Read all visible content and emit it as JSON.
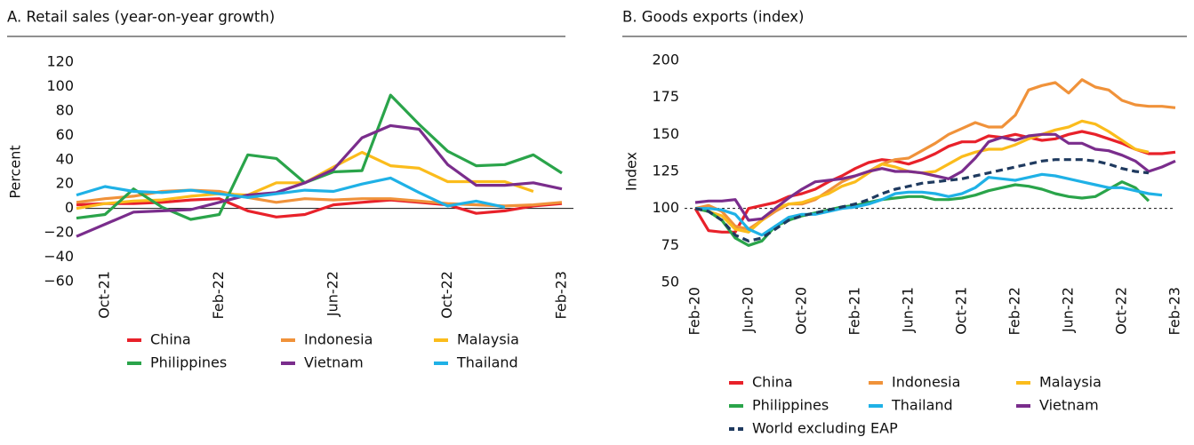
{
  "chart_data": [
    {
      "type": "line",
      "title": "A. Retail sales (year-on-year growth)",
      "y_label": "Percent",
      "categories": [
        null,
        "Oct-21",
        null,
        null,
        null,
        "Feb-22",
        null,
        null,
        null,
        "Jun-22",
        null,
        null,
        null,
        "Oct-22",
        null,
        null,
        null,
        "Feb-23"
      ],
      "ylim": [
        -60,
        120
      ],
      "yticks": [
        {
          "value": -60,
          "label": "−60"
        },
        {
          "value": -40,
          "label": "−40"
        },
        {
          "value": -20,
          "label": "−20"
        },
        0,
        20,
        40,
        60,
        80,
        100,
        120
      ],
      "hline": 0,
      "series": [
        {
          "name": "China",
          "color": "#e8212a",
          "values": [
            3,
            4,
            4,
            5,
            7,
            8,
            -2,
            -7,
            -5,
            3,
            5,
            7,
            5,
            3,
            -4,
            -2,
            2,
            4
          ]
        },
        {
          "name": "Indonesia",
          "color": "#f0923a",
          "values": [
            5,
            8,
            10,
            14,
            15,
            14,
            9,
            5,
            8,
            7,
            8,
            8,
            6,
            4,
            3,
            2,
            3,
            5
          ]
        },
        {
          "name": "Malaysia",
          "color": "#fbbc1c",
          "values": [
            0,
            4,
            6,
            7,
            10,
            12,
            11,
            21,
            21,
            34,
            46,
            35,
            33,
            22,
            22,
            22,
            14,
            null
          ]
        },
        {
          "name": "Philippines",
          "color": "#2aa44a",
          "values": [
            -8,
            -5,
            16,
            1,
            -9,
            -5,
            44,
            41,
            21,
            30,
            31,
            93,
            69,
            47,
            35,
            36,
            44,
            29
          ]
        },
        {
          "name": "Vietnam",
          "color": "#7a2d8c",
          "values": [
            -23,
            -13,
            -3,
            -2,
            -1,
            5,
            11,
            13,
            21,
            32,
            58,
            68,
            65,
            36,
            19,
            19,
            21,
            16
          ]
        },
        {
          "name": "Thailand",
          "color": "#1fb1e6",
          "values": [
            11,
            18,
            14,
            13,
            15,
            12,
            9,
            12,
            15,
            14,
            20,
            25,
            13,
            2,
            6,
            1,
            null,
            null
          ]
        }
      ]
    },
    {
      "type": "line",
      "title": "B. Goods exports (index)",
      "y_label": "Index",
      "categories": [
        "Feb-20",
        null,
        null,
        null,
        "Jun-20",
        null,
        null,
        null,
        "Oct-20",
        null,
        null,
        null,
        "Feb-21",
        null,
        null,
        null,
        "Jun-21",
        null,
        null,
        null,
        "Oct-21",
        null,
        null,
        null,
        "Feb-22",
        null,
        null,
        null,
        "Jun-22",
        null,
        null,
        null,
        "Oct-22",
        null,
        null,
        null,
        "Feb-23"
      ],
      "ylim": [
        50,
        200
      ],
      "yticks": [
        50,
        75,
        100,
        125,
        150,
        175,
        200
      ],
      "hline": 100,
      "series": [
        {
          "name": "China",
          "color": "#e8212a",
          "values": [
            100,
            85,
            84,
            84,
            100,
            102,
            104,
            108,
            110,
            113,
            118,
            122,
            127,
            131,
            133,
            132,
            130,
            133,
            137,
            142,
            145,
            145,
            149,
            148,
            150,
            148,
            146,
            147,
            150,
            152,
            150,
            147,
            144,
            140,
            137,
            137,
            138
          ]
        },
        {
          "name": "Indonesia",
          "color": "#f0923a",
          "values": [
            100,
            102,
            98,
            88,
            86,
            92,
            98,
            103,
            103,
            106,
            112,
            118,
            122,
            125,
            130,
            133,
            134,
            139,
            144,
            150,
            154,
            158,
            155,
            155,
            163,
            180,
            183,
            185,
            178,
            187,
            182,
            180,
            173,
            170,
            169,
            169,
            168
          ]
        },
        {
          "name": "Malaysia",
          "color": "#fbbc1c",
          "values": [
            100,
            98,
            95,
            86,
            84,
            92,
            100,
            103,
            104,
            107,
            110,
            115,
            118,
            124,
            130,
            128,
            125,
            124,
            125,
            130,
            135,
            138,
            140,
            140,
            143,
            147,
            150,
            153,
            155,
            159,
            157,
            152,
            146,
            140,
            138,
            null,
            null
          ]
        },
        {
          "name": "Philippines",
          "color": "#2aa44a",
          "values": [
            100,
            98,
            92,
            80,
            75,
            78,
            88,
            92,
            95,
            97,
            99,
            101,
            102,
            104,
            106,
            107,
            108,
            108,
            106,
            106,
            107,
            109,
            112,
            114,
            116,
            115,
            113,
            110,
            108,
            107,
            108,
            113,
            118,
            114,
            105,
            null,
            null
          ]
        },
        {
          "name": "Thailand",
          "color": "#1fb1e6",
          "values": [
            100,
            100,
            99,
            96,
            86,
            82,
            88,
            94,
            96,
            96,
            98,
            100,
            101,
            103,
            106,
            110,
            111,
            111,
            110,
            108,
            110,
            114,
            121,
            120,
            119,
            121,
            123,
            122,
            120,
            118,
            116,
            114,
            114,
            112,
            110,
            109,
            null
          ]
        },
        {
          "name": "Vietnam",
          "color": "#7a2d8c",
          "values": [
            104,
            105,
            105,
            106,
            92,
            93,
            100,
            107,
            113,
            118,
            119,
            120,
            122,
            125,
            127,
            125,
            125,
            124,
            122,
            120,
            125,
            134,
            145,
            148,
            146,
            149,
            150,
            150,
            144,
            144,
            140,
            139,
            136,
            132,
            125,
            128,
            132
          ]
        },
        {
          "name": "World excluding EAP",
          "color": "#1f3a5f",
          "dashed": true,
          "values": [
            100,
            98,
            92,
            82,
            78,
            80,
            86,
            92,
            95,
            97,
            99,
            101,
            103,
            106,
            110,
            113,
            115,
            117,
            118,
            119,
            120,
            122,
            124,
            126,
            128,
            130,
            132,
            133,
            133,
            133,
            132,
            130,
            127,
            125,
            124,
            null,
            null
          ]
        }
      ]
    }
  ]
}
